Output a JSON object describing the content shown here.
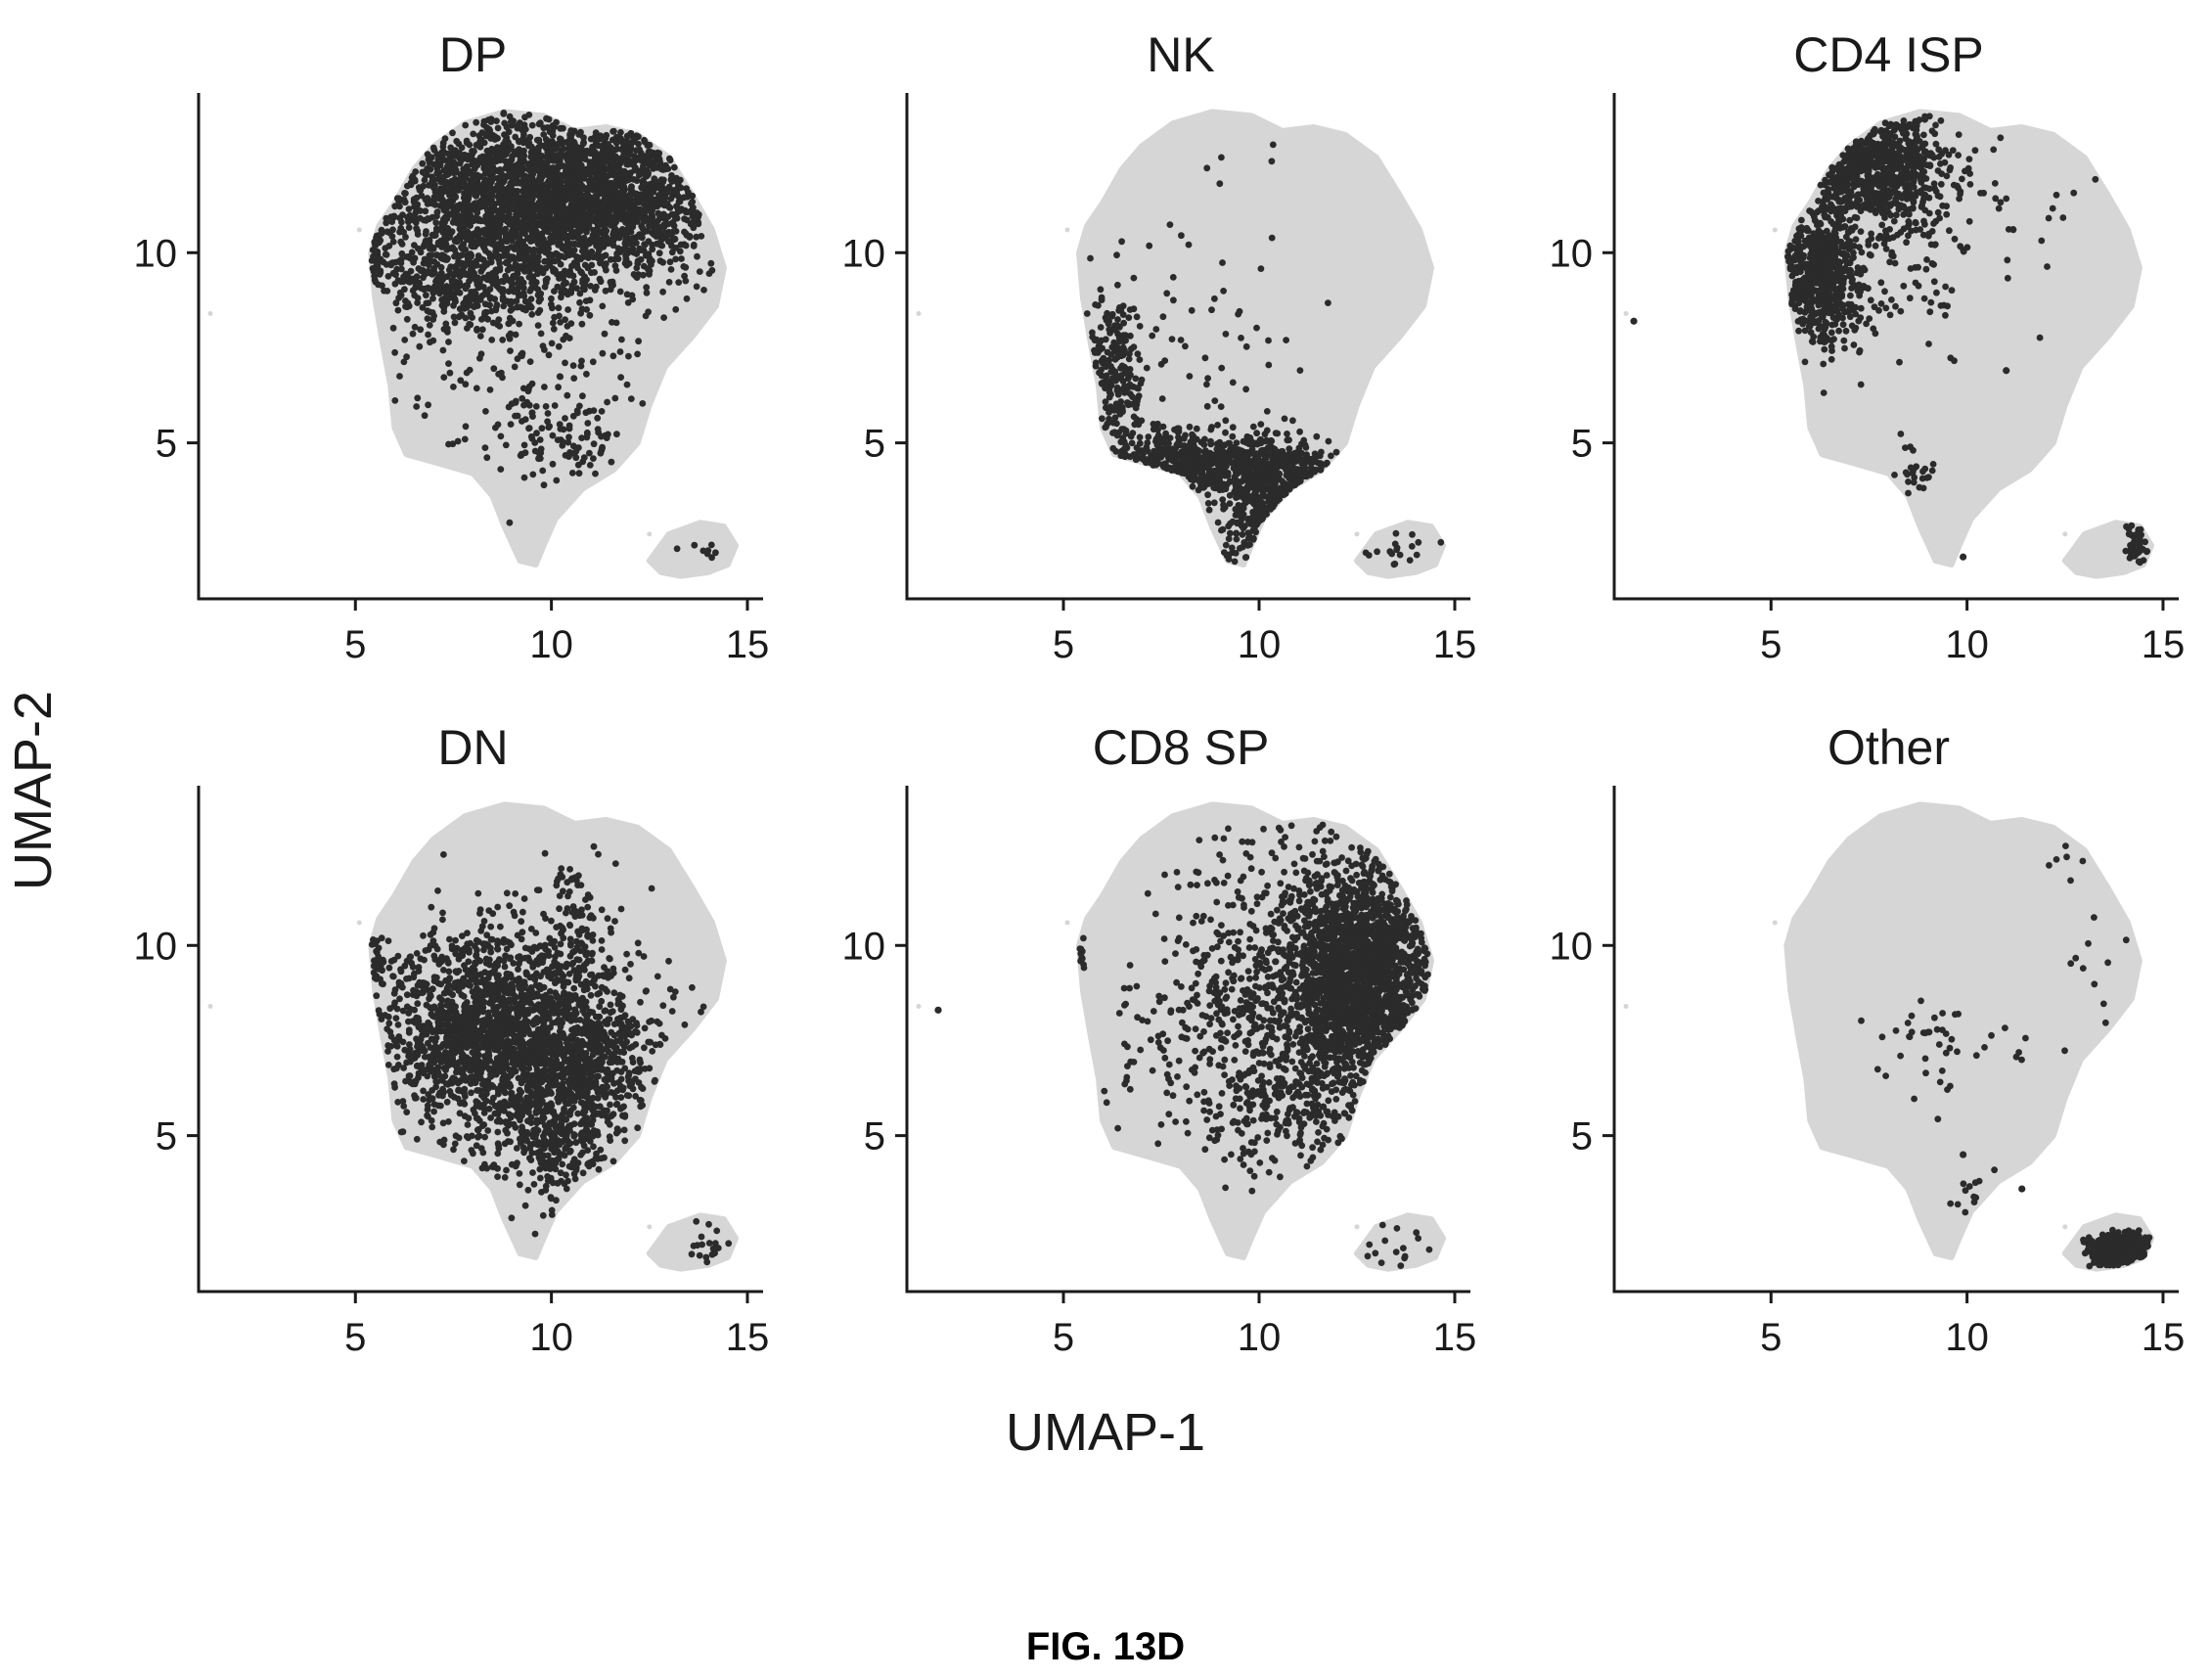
{
  "figure": {
    "caption": "FIG. 13D",
    "xlabel": "UMAP-1",
    "ylabel": "UMAP-2"
  },
  "colors": {
    "background_cells": "#d6d6d6",
    "highlight_cells": "#2b2b2b",
    "axis": "#1a1a1a"
  },
  "chart_data": [
    {
      "type": "scatter",
      "title": "DP",
      "xlim": [
        1,
        15.4
      ],
      "ylim": [
        0.9,
        14.2
      ],
      "xticks": [
        5,
        10,
        15
      ],
      "yticks": [
        5,
        10
      ],
      "highlight_clusters": [
        {
          "cx": 9.3,
          "cy": 11.4,
          "sx": 2.1,
          "sy": 1.2,
          "n": 2200
        },
        {
          "cx": 11.8,
          "cy": 11.6,
          "sx": 1.2,
          "sy": 1.0,
          "n": 700
        },
        {
          "cx": 8.0,
          "cy": 9.0,
          "sx": 1.6,
          "sy": 0.6,
          "n": 350
        },
        {
          "cx": 9.5,
          "cy": 6.8,
          "sx": 2.0,
          "sy": 1.2,
          "n": 120
        },
        {
          "cx": 10.3,
          "cy": 5.0,
          "sx": 1.0,
          "sy": 0.6,
          "n": 90
        },
        {
          "cx": 5.2,
          "cy": 9.9,
          "sx": 0.2,
          "sy": 0.3,
          "n": 30
        },
        {
          "cx": 13.9,
          "cy": 2.2,
          "sx": 0.4,
          "sy": 0.35,
          "n": 8
        }
      ]
    },
    {
      "type": "scatter",
      "title": "NK",
      "xlim": [
        1,
        15.4
      ],
      "ylim": [
        0.9,
        14.2
      ],
      "xticks": [
        5,
        10,
        15
      ],
      "yticks": [
        5,
        10
      ],
      "highlight_clusters": [
        {
          "cx": 6.3,
          "cy": 6.8,
          "sx": 0.4,
          "sy": 1.2,
          "n": 200
        },
        {
          "cx": 8.3,
          "cy": 4.5,
          "sx": 1.3,
          "sy": 0.4,
          "n": 500
        },
        {
          "cx": 10.2,
          "cy": 3.3,
          "sx": 0.6,
          "sy": 0.9,
          "n": 350
        },
        {
          "cx": 11.3,
          "cy": 4.2,
          "sx": 0.6,
          "sy": 0.3,
          "n": 120
        },
        {
          "cx": 8.5,
          "cy": 7.5,
          "sx": 1.5,
          "sy": 1.2,
          "n": 40
        },
        {
          "cx": 9.3,
          "cy": 11.0,
          "sx": 1.8,
          "sy": 1.3,
          "n": 14
        },
        {
          "cx": 13.6,
          "cy": 2.2,
          "sx": 0.5,
          "sy": 0.4,
          "n": 18
        }
      ]
    },
    {
      "type": "scatter",
      "title": "CD4 ISP",
      "xlim": [
        1,
        15.4
      ],
      "ylim": [
        0.9,
        14.2
      ],
      "xticks": [
        5,
        10,
        15
      ],
      "yticks": [
        5,
        10
      ],
      "highlight_clusters": [
        {
          "cx": 6.3,
          "cy": 9.4,
          "sx": 0.5,
          "sy": 0.9,
          "n": 600
        },
        {
          "cx": 7.7,
          "cy": 12.3,
          "sx": 0.9,
          "sy": 0.8,
          "n": 700
        },
        {
          "cx": 8.0,
          "cy": 10.2,
          "sx": 1.2,
          "sy": 1.4,
          "n": 120
        },
        {
          "cx": 11.0,
          "cy": 11.0,
          "sx": 1.5,
          "sy": 1.3,
          "n": 25
        },
        {
          "cx": 8.7,
          "cy": 4.3,
          "sx": 0.25,
          "sy": 0.4,
          "n": 25
        },
        {
          "cx": 14.4,
          "cy": 2.4,
          "sx": 0.2,
          "sy": 0.3,
          "n": 50
        },
        {
          "cx": 5.3,
          "cy": 9.9,
          "sx": 0.15,
          "sy": 0.3,
          "n": 15
        }
      ],
      "highlight_points": [
        [
          1.5,
          8.2
        ],
        [
          9.9,
          2.0
        ],
        [
          11.0,
          6.9
        ]
      ]
    },
    {
      "type": "scatter",
      "title": "DN",
      "xlim": [
        1,
        15.4
      ],
      "ylim": [
        0.9,
        14.2
      ],
      "xticks": [
        5,
        10,
        15
      ],
      "yticks": [
        5,
        10
      ],
      "highlight_clusters": [
        {
          "cx": 8.8,
          "cy": 7.7,
          "sx": 1.6,
          "sy": 1.3,
          "n": 2000
        },
        {
          "cx": 10.2,
          "cy": 5.3,
          "sx": 0.9,
          "sy": 1.0,
          "n": 400
        },
        {
          "cx": 11.4,
          "cy": 6.8,
          "sx": 0.7,
          "sy": 0.8,
          "n": 200
        },
        {
          "cx": 10.5,
          "cy": 10.5,
          "sx": 0.5,
          "sy": 0.9,
          "n": 90
        },
        {
          "cx": 5.4,
          "cy": 9.6,
          "sx": 0.2,
          "sy": 0.4,
          "n": 25
        },
        {
          "cx": 14.0,
          "cy": 2.0,
          "sx": 0.3,
          "sy": 0.3,
          "n": 18
        }
      ]
    },
    {
      "type": "scatter",
      "title": "CD8 SP",
      "xlim": [
        1,
        15.4
      ],
      "ylim": [
        0.9,
        14.2
      ],
      "xticks": [
        5,
        10,
        15
      ],
      "yticks": [
        5,
        10
      ],
      "highlight_clusters": [
        {
          "cx": 12.6,
          "cy": 9.1,
          "sx": 1.0,
          "sy": 1.6,
          "n": 2000
        },
        {
          "cx": 10.0,
          "cy": 9.0,
          "sx": 1.2,
          "sy": 2.4,
          "n": 400
        },
        {
          "cx": 8.6,
          "cy": 7.7,
          "sx": 1.3,
          "sy": 1.4,
          "n": 120
        },
        {
          "cx": 10.7,
          "cy": 5.5,
          "sx": 1.0,
          "sy": 0.7,
          "n": 150
        },
        {
          "cx": 5.2,
          "cy": 9.8,
          "sx": 0.15,
          "sy": 0.3,
          "n": 12
        },
        {
          "cx": 13.3,
          "cy": 2.1,
          "sx": 0.6,
          "sy": 0.4,
          "n": 15
        }
      ],
      "highlight_points": [
        [
          1.8,
          8.3
        ]
      ]
    },
    {
      "type": "scatter",
      "title": "Other",
      "xlim": [
        1,
        15.4
      ],
      "ylim": [
        0.9,
        14.2
      ],
      "xticks": [
        5,
        10,
        15
      ],
      "yticks": [
        5,
        10
      ],
      "highlight_clusters": [
        {
          "cx": 14.0,
          "cy": 2.0,
          "sx": 0.4,
          "sy": 0.2,
          "n": 600
        },
        {
          "cx": 12.1,
          "cy": 2.0,
          "sx": 0.15,
          "sy": 0.15,
          "n": 15
        },
        {
          "cx": 9.0,
          "cy": 7.5,
          "sx": 1.2,
          "sy": 0.7,
          "n": 45
        },
        {
          "cx": 10.3,
          "cy": 3.1,
          "sx": 0.3,
          "sy": 0.6,
          "n": 12
        },
        {
          "cx": 13.6,
          "cy": 8.7,
          "sx": 0.6,
          "sy": 1.2,
          "n": 10
        },
        {
          "cx": 12.7,
          "cy": 12.6,
          "sx": 0.4,
          "sy": 0.5,
          "n": 6
        }
      ],
      "highlight_points": [
        [
          11.4,
          3.6
        ],
        [
          9.9,
          4.5
        ]
      ]
    }
  ],
  "background_cloud": {
    "main_polygon": [
      [
        5.4,
        10.0
      ],
      [
        5.6,
        10.7
      ],
      [
        6.0,
        11.3
      ],
      [
        6.5,
        12.2
      ],
      [
        7.0,
        12.8
      ],
      [
        7.8,
        13.4
      ],
      [
        8.8,
        13.7
      ],
      [
        9.8,
        13.6
      ],
      [
        10.6,
        13.2
      ],
      [
        11.4,
        13.3
      ],
      [
        12.2,
        13.1
      ],
      [
        13.0,
        12.5
      ],
      [
        13.6,
        11.5
      ],
      [
        14.1,
        10.6
      ],
      [
        14.4,
        9.6
      ],
      [
        14.2,
        8.6
      ],
      [
        13.6,
        7.8
      ],
      [
        12.9,
        7.0
      ],
      [
        12.5,
        6.0
      ],
      [
        12.2,
        5.0
      ],
      [
        11.6,
        4.3
      ],
      [
        10.8,
        3.8
      ],
      [
        10.1,
        3.0
      ],
      [
        9.8,
        2.3
      ],
      [
        9.6,
        1.8
      ],
      [
        9.2,
        1.9
      ],
      [
        8.8,
        2.8
      ],
      [
        8.5,
        3.6
      ],
      [
        8.0,
        4.2
      ],
      [
        7.0,
        4.5
      ],
      [
        6.3,
        4.7
      ],
      [
        6.0,
        5.4
      ],
      [
        5.9,
        6.5
      ],
      [
        5.7,
        7.6
      ],
      [
        5.5,
        8.8
      ]
    ],
    "island_polygon": [
      [
        12.5,
        1.9
      ],
      [
        13.0,
        2.6
      ],
      [
        13.8,
        2.9
      ],
      [
        14.4,
        2.8
      ],
      [
        14.7,
        2.3
      ],
      [
        14.5,
        1.8
      ],
      [
        14.0,
        1.6
      ],
      [
        13.3,
        1.5
      ],
      [
        12.8,
        1.6
      ]
    ]
  }
}
